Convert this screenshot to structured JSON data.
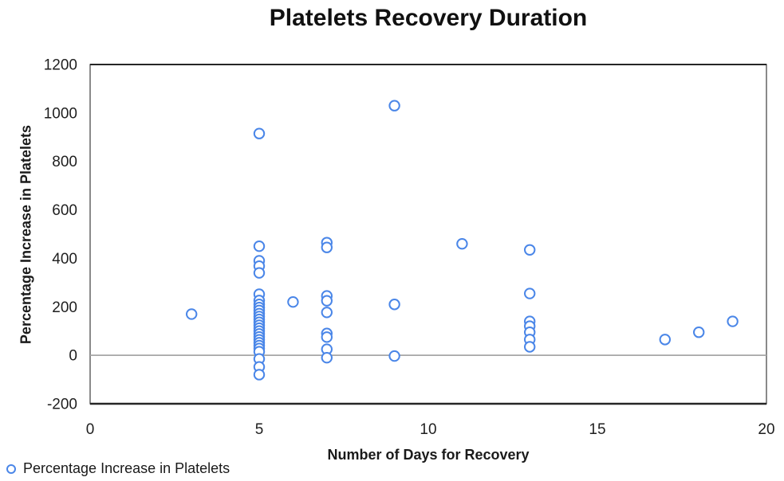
{
  "title": "Platelets Recovery Duration",
  "legend": {
    "label": "Percentage Increase in Platelets",
    "marker_color": "#4a86e8"
  },
  "colors": {
    "marker_stroke": "#4a86e8",
    "axis_dark": "#262626",
    "box_border": "#595959",
    "zero_line": "#a6a6a6",
    "text": "#1f1f1f"
  },
  "chart_data": {
    "type": "scatter",
    "title": "Platelets Recovery Duration",
    "xlabel": "Number of Days for Recovery",
    "ylabel": "Percentage Increase in Platelets",
    "xlim": [
      0,
      20
    ],
    "ylim": [
      -200,
      1200
    ],
    "x_ticks": [
      0,
      5,
      10,
      15,
      20
    ],
    "y_ticks": [
      -200,
      0,
      200,
      400,
      600,
      800,
      1000,
      1200
    ],
    "grid": "horizontal-zero-line-only",
    "legend_position": "bottom-left",
    "series": [
      {
        "name": "Percentage Increase in Platelets",
        "marker": "open-circle",
        "color": "#4a86e8",
        "points": [
          [
            3,
            170
          ],
          [
            5,
            915
          ],
          [
            5,
            450
          ],
          [
            5,
            390
          ],
          [
            5,
            368
          ],
          [
            5,
            340
          ],
          [
            5,
            252
          ],
          [
            5,
            226
          ],
          [
            5,
            210
          ],
          [
            5,
            197
          ],
          [
            5,
            185
          ],
          [
            5,
            172
          ],
          [
            5,
            160
          ],
          [
            5,
            148
          ],
          [
            5,
            136
          ],
          [
            5,
            124
          ],
          [
            5,
            112
          ],
          [
            5,
            100
          ],
          [
            5,
            88
          ],
          [
            5,
            76
          ],
          [
            5,
            64
          ],
          [
            5,
            52
          ],
          [
            5,
            40
          ],
          [
            5,
            28
          ],
          [
            5,
            15
          ],
          [
            5,
            -15
          ],
          [
            5,
            -48
          ],
          [
            5,
            -80
          ],
          [
            6,
            220
          ],
          [
            7,
            465
          ],
          [
            7,
            445
          ],
          [
            7,
            245
          ],
          [
            7,
            225
          ],
          [
            7,
            177
          ],
          [
            7,
            90
          ],
          [
            7,
            75
          ],
          [
            7,
            25
          ],
          [
            7,
            -10
          ],
          [
            9,
            1030
          ],
          [
            9,
            210
          ],
          [
            9,
            -3
          ],
          [
            11,
            460
          ],
          [
            13,
            435
          ],
          [
            13,
            255
          ],
          [
            13,
            140
          ],
          [
            13,
            120
          ],
          [
            13,
            95
          ],
          [
            13,
            65
          ],
          [
            13,
            35
          ],
          [
            17,
            65
          ],
          [
            18,
            95
          ],
          [
            19,
            140
          ]
        ]
      }
    ]
  }
}
